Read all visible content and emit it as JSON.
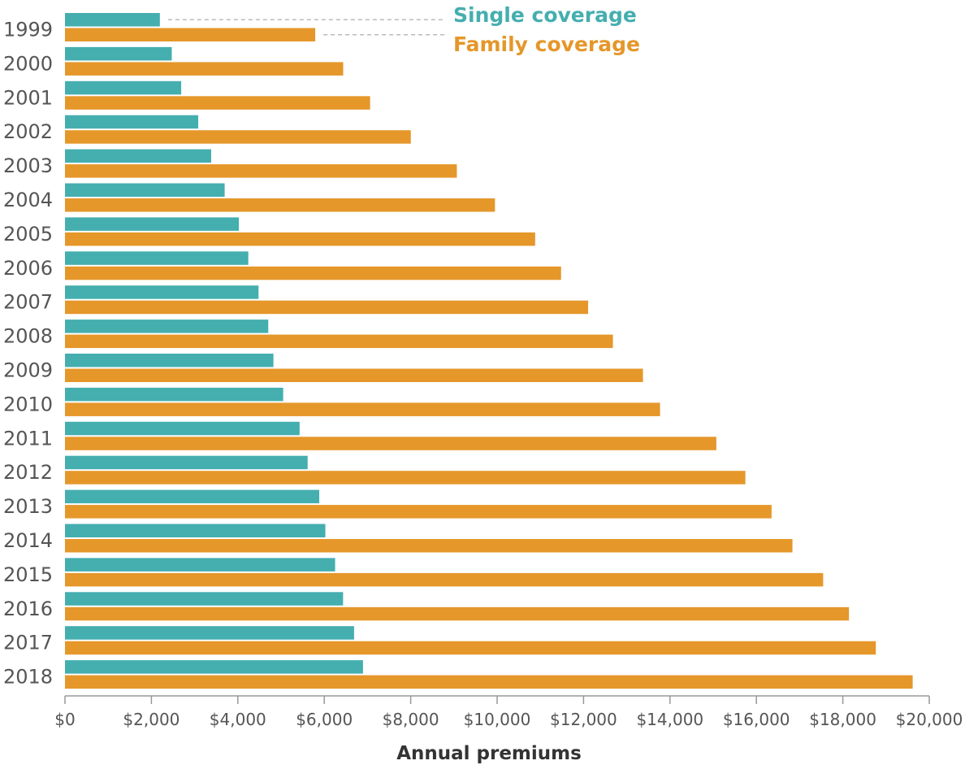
{
  "chart_data": {
    "type": "bar",
    "orientation": "horizontal",
    "categories": [
      "1999",
      "2000",
      "2001",
      "2002",
      "2003",
      "2004",
      "2005",
      "2006",
      "2007",
      "2008",
      "2009",
      "2010",
      "2011",
      "2012",
      "2013",
      "2014",
      "2015",
      "2016",
      "2017",
      "2018"
    ],
    "series": [
      {
        "name": "Single coverage",
        "color": "#45aeaf",
        "values": [
          2196,
          2471,
          2689,
          3083,
          3383,
          3695,
          4024,
          4242,
          4479,
          4704,
          4824,
          5049,
          5429,
          5615,
          5884,
          6025,
          6251,
          6435,
          6690,
          6896
        ]
      },
      {
        "name": "Family coverage",
        "color": "#e5972a",
        "values": [
          5791,
          6438,
          7061,
          8003,
          9068,
          9950,
          10880,
          11480,
          12106,
          12680,
          13375,
          13770,
          15073,
          15745,
          16351,
          16834,
          17545,
          18142,
          18764,
          19616
        ]
      }
    ],
    "xlabel": "Annual premiums",
    "xlim": [
      0,
      20000
    ],
    "xticks": [
      0,
      2000,
      4000,
      6000,
      8000,
      10000,
      12000,
      14000,
      16000,
      18000,
      20000
    ],
    "xtick_labels": [
      "$0",
      "$2,000",
      "$4,000",
      "$6,000",
      "$8,000",
      "$10,000",
      "$12,000",
      "$14,000",
      "$16,000",
      "$18,000",
      "$20,000"
    ],
    "grid": false,
    "legend_placement": "top, annotated beside first year's bars"
  }
}
